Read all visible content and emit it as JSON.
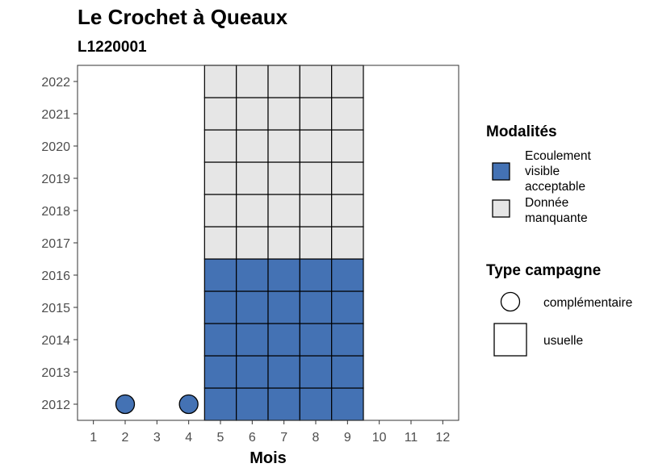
{
  "chart_data": {
    "type": "heatmap",
    "title": "Le Crochet à Queaux",
    "subtitle": "L1220001",
    "xlabel": "Mois",
    "ylabel": "",
    "x_ticks": [
      "1",
      "2",
      "3",
      "4",
      "5",
      "6",
      "7",
      "8",
      "9",
      "10",
      "11",
      "12"
    ],
    "y_ticks": [
      "2012",
      "2013",
      "2014",
      "2015",
      "2016",
      "2017",
      "2018",
      "2019",
      "2020",
      "2021",
      "2022"
    ],
    "xlim": [
      1,
      12
    ],
    "ylim": [
      2012,
      2022
    ],
    "grid": false,
    "colors": {
      "Ecoulement visible acceptable": "#4472b4",
      "Donnée manquante": "#e6e6e6"
    },
    "usuelle_cells": {
      "months": [
        5,
        6,
        7,
        8,
        9
      ],
      "years": [
        2012,
        2013,
        2014,
        2015,
        2016,
        2017,
        2018,
        2019,
        2020,
        2021,
        2022
      ],
      "modalite_by_year": {
        "2012": "Ecoulement visible acceptable",
        "2013": "Ecoulement visible acceptable",
        "2014": "Ecoulement visible acceptable",
        "2015": "Ecoulement visible acceptable",
        "2016": "Ecoulement visible acceptable",
        "2017": "Donnée manquante",
        "2018": "Donnée manquante",
        "2019": "Donnée manquante",
        "2020": "Donnée manquante",
        "2021": "Donnée manquante",
        "2022": "Donnée manquante"
      }
    },
    "complementaire_points": [
      {
        "month": 2,
        "year": 2012,
        "modalite": "Ecoulement visible acceptable"
      },
      {
        "month": 4,
        "year": 2012,
        "modalite": "Ecoulement visible acceptable"
      }
    ],
    "legend": {
      "placement": "right",
      "modalites": {
        "title": "Modalités",
        "items": [
          {
            "lines": [
              "Ecoulement",
              "visible",
              "acceptable"
            ],
            "color": "#4472b4"
          },
          {
            "lines": [
              "Donnée",
              "manquante"
            ],
            "color": "#e6e6e6"
          }
        ]
      },
      "type_campagne": {
        "title": "Type campagne",
        "items": [
          {
            "label": "complémentaire",
            "shape": "circle"
          },
          {
            "label": "usuelle",
            "shape": "square"
          }
        ]
      }
    }
  }
}
